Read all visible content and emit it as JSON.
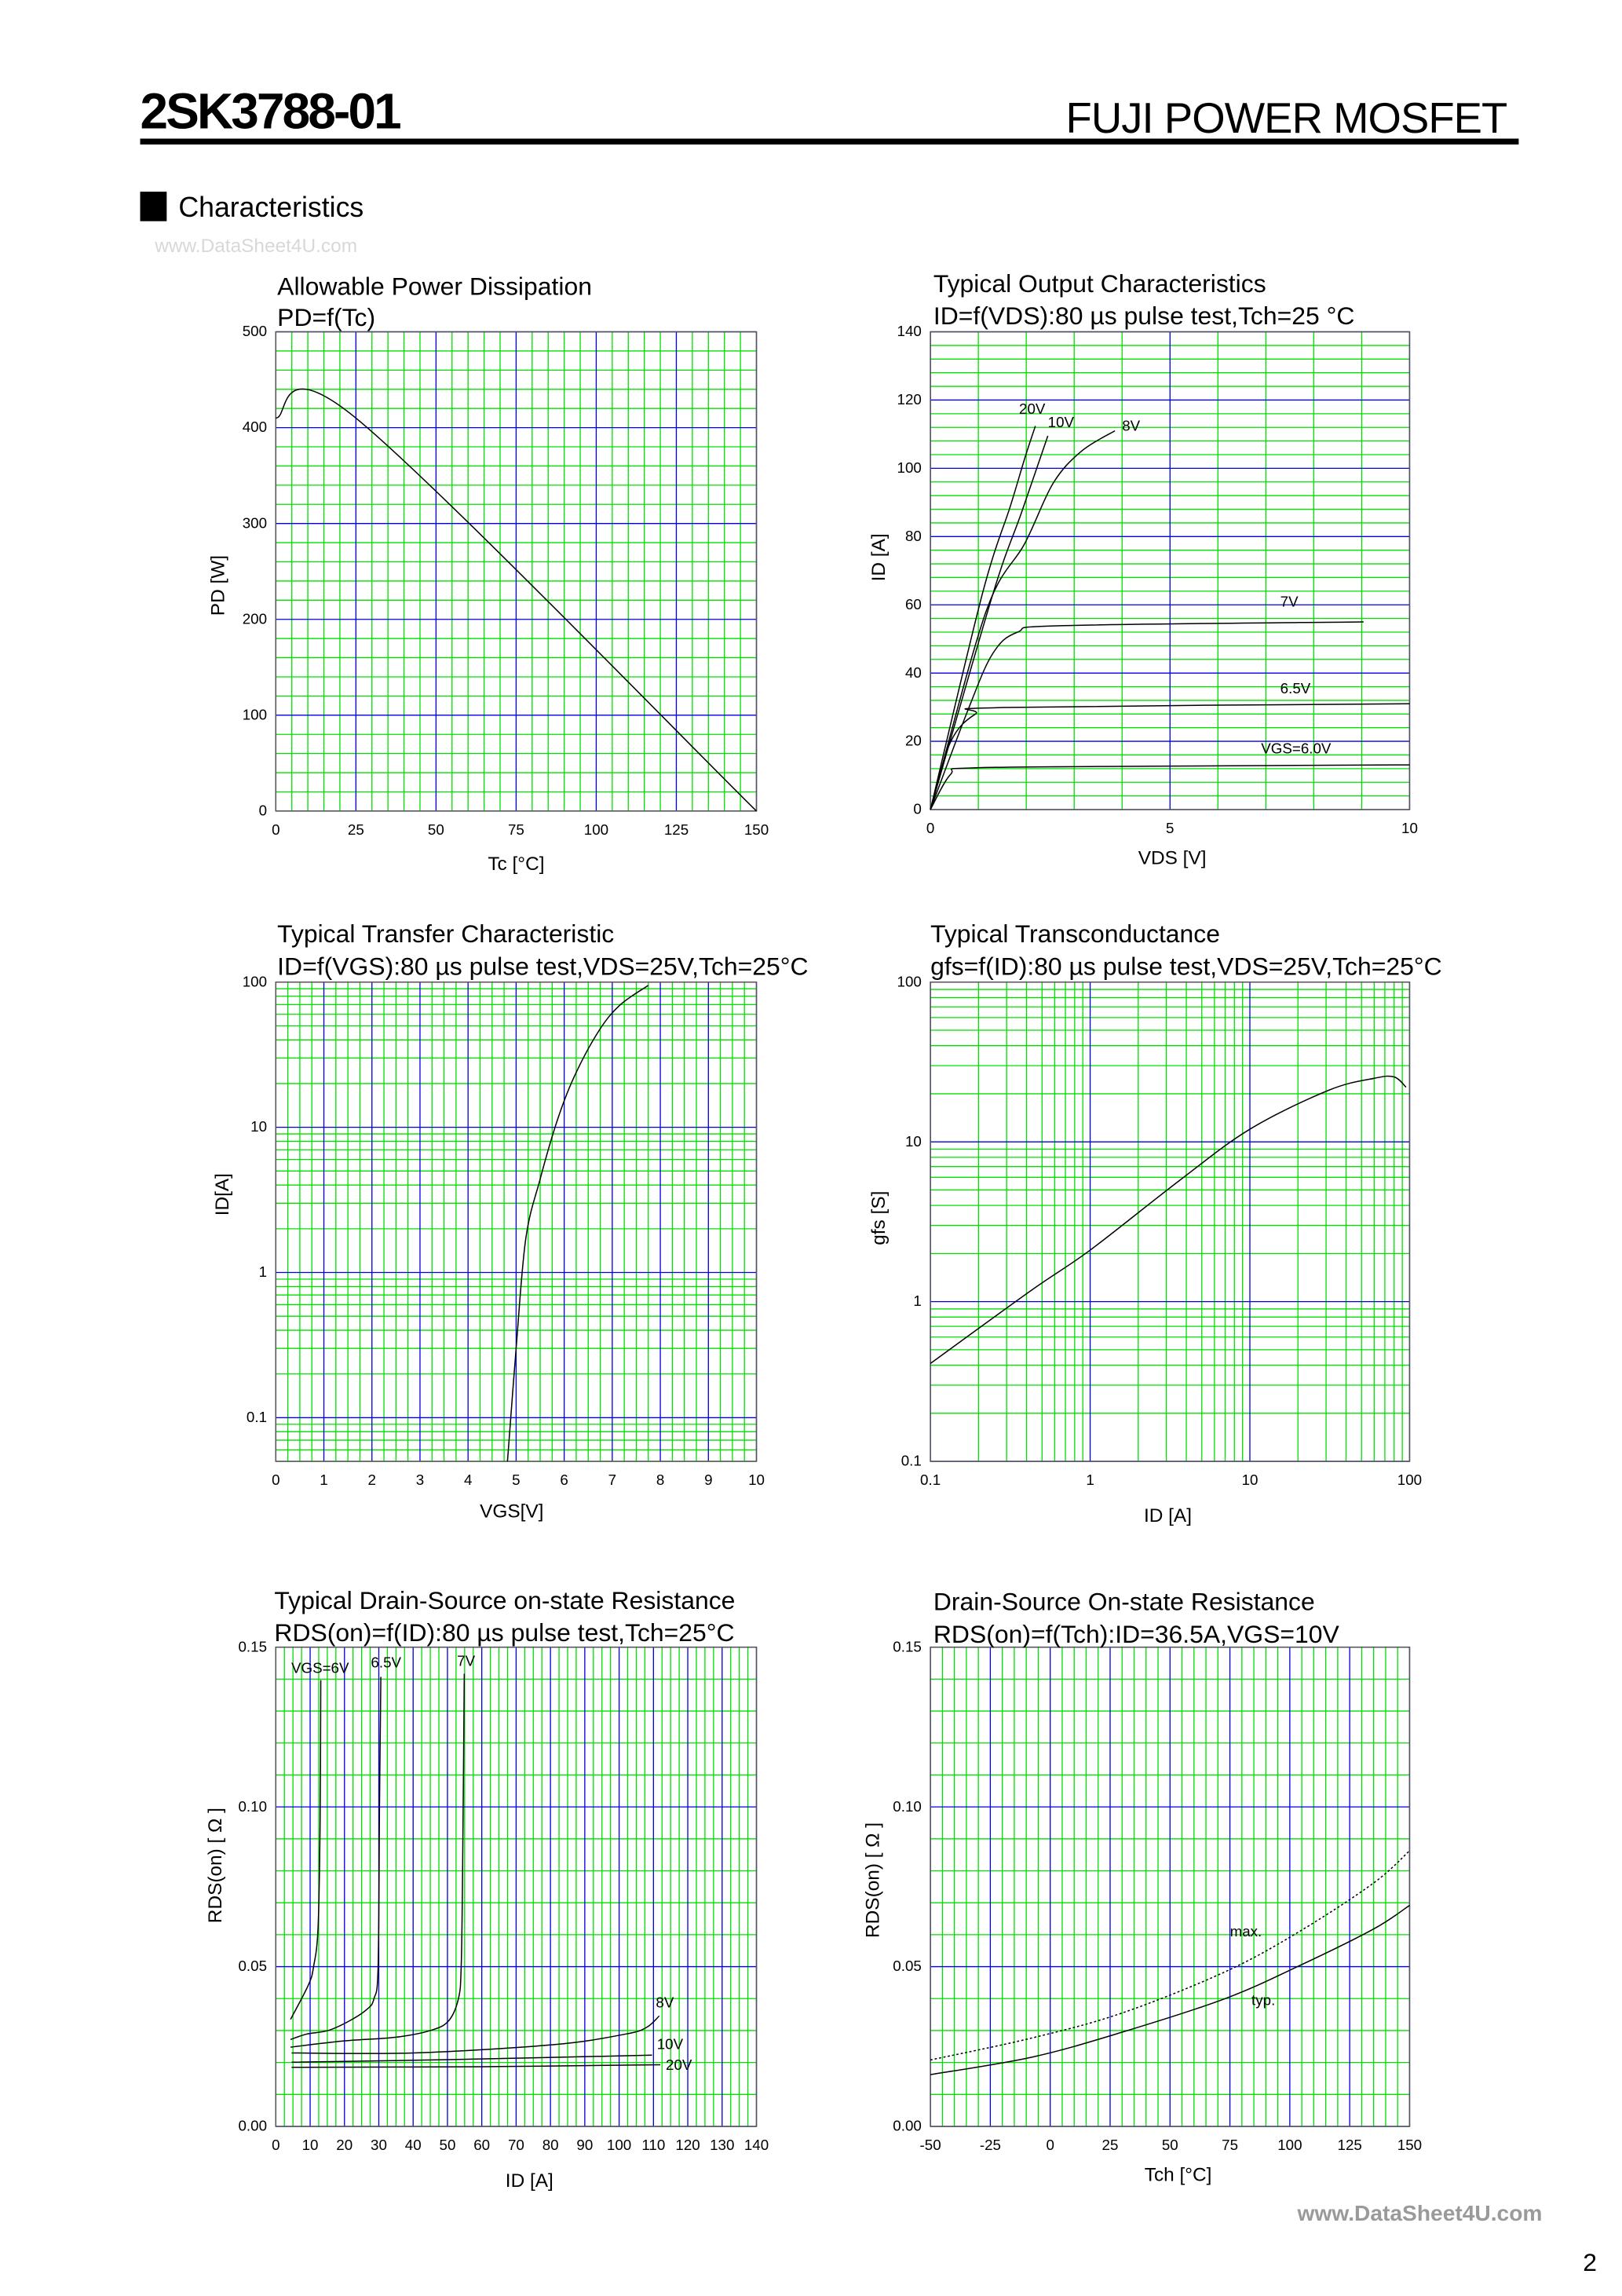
{
  "header": {
    "part_number": "2SK3788-01",
    "product_line": "FUJI POWER MOSFET",
    "section": "Characteristics",
    "watermark_top": "www.DataSheet4U.com",
    "watermark_bottom": "www.DataSheet4U.com",
    "page_number": "2"
  },
  "colors": {
    "minor_grid": "#00e000",
    "major_grid": "#0000e0",
    "curve": "#000000"
  },
  "chart_data": [
    {
      "type": "line",
      "title": "Allowable Power Dissipation",
      "subtitle": "PD=f(Tc)",
      "xlabel": "Tc [°C]",
      "ylabel": "PD [W]",
      "xlim": [
        0,
        150
      ],
      "ylim": [
        0,
        500
      ],
      "grid": true,
      "xticks": [
        "0",
        "25",
        "50",
        "75",
        "100",
        "125",
        "150"
      ],
      "yticks": [
        "0",
        "100",
        "200",
        "300",
        "400",
        "500"
      ],
      "series": [
        {
          "x": [
            0,
            25,
            150
          ],
          "y": [
            410,
            410,
            0
          ]
        }
      ],
      "annotations": []
    },
    {
      "type": "line",
      "title": "Typical Output Characteristics",
      "subtitle": "ID=f(VDS):80 µs pulse test,Tch=25 °C",
      "xlabel": "VDS [V]",
      "ylabel": "ID [A]",
      "xlim": [
        0,
        10
      ],
      "ylim": [
        0,
        140
      ],
      "grid": true,
      "xticks": [
        "0",
        "5",
        "10"
      ],
      "yticks": [
        "0",
        "20",
        "40",
        "60",
        "80",
        "100",
        "120",
        "140"
      ],
      "series": [
        {
          "name": "20V",
          "x": [
            0,
            1.08,
            1.67,
            1.97,
            2.19
          ],
          "y": [
            0,
            63,
            89,
            103,
            112.4
          ]
        },
        {
          "name": "10V",
          "x": [
            0,
            1.3,
            1.9,
            2.45
          ],
          "y": [
            0,
            63,
            87,
            109.5
          ]
        },
        {
          "name": "8V",
          "x": [
            0,
            1.16,
            1.97,
            2.56,
            3.15,
            3.85
          ],
          "y": [
            0,
            58,
            78,
            95.6,
            105,
            111
          ]
        },
        {
          "name": "7V",
          "x": [
            0,
            0.79,
            1.3,
            1.82,
            2.78,
            9.04
          ],
          "y": [
            0,
            29.4,
            45.7,
            52,
            53.9,
            55
          ]
        },
        {
          "name": "6.5V",
          "x": [
            0,
            0.42,
            0.94,
            1.53,
            10
          ],
          "y": [
            0,
            19.8,
            28,
            29.9,
            31
          ]
        },
        {
          "name": "VGS=6.0V",
          "x": [
            0,
            0.42,
            0.86,
            4.6,
            10
          ],
          "y": [
            0,
            10.3,
            12.2,
            12.7,
            13.1
          ]
        }
      ],
      "annotations": [
        {
          "text": "20V",
          "at": [
            1.85,
            116
          ]
        },
        {
          "text": "10V",
          "at": [
            2.45,
            112
          ]
        },
        {
          "text": "8V",
          "at": [
            4.0,
            111
          ]
        },
        {
          "text": "7V",
          "at": [
            7.3,
            59.5
          ]
        },
        {
          "text": "6.5V",
          "at": [
            7.3,
            34
          ]
        },
        {
          "text": "VGS=6.0V",
          "at": [
            6.9,
            16.5
          ]
        }
      ]
    },
    {
      "type": "line",
      "title": "Typical Transfer Characteristic",
      "subtitle": "ID=f(VGS):80 µs pulse test,VDS=25V,Tch=25°C",
      "xlabel": "VGS[V]",
      "ylabel": "ID[A]",
      "xlim": [
        0,
        10
      ],
      "ylim": [
        0.05,
        100
      ],
      "yscale": "log",
      "grid": true,
      "xticks": [
        "0",
        "1",
        "2",
        "3",
        "4",
        "5",
        "6",
        "7",
        "8",
        "9",
        "10"
      ],
      "yticks": [
        "0.1",
        "1",
        "10",
        "100"
      ],
      "series": [
        {
          "x": [
            4.82,
            5.0,
            5.2,
            5.5,
            5.85,
            6.2,
            6.7,
            7.15,
            7.75
          ],
          "y": [
            0.05,
            0.3,
            1.7,
            4.4,
            11,
            22,
            45,
            69,
            95
          ]
        }
      ],
      "annotations": []
    },
    {
      "type": "line",
      "title": "Typical Transconductance",
      "subtitle": "gfs=f(ID):80 µs pulse test,VDS=25V,Tch=25°C",
      "xlabel": "ID [A]",
      "ylabel": "gfs [S]",
      "xlim": [
        0.1,
        100
      ],
      "ylim": [
        0.1,
        100
      ],
      "xscale": "log",
      "yscale": "log",
      "grid": true,
      "xticks": [
        "0.1",
        "1",
        "10",
        "100"
      ],
      "yticks": [
        "0.1",
        "1",
        "10",
        "100"
      ],
      "series": [
        {
          "x": [
            0.1,
            0.43,
            1,
            3.6,
            10,
            31,
            60,
            80,
            95
          ],
          "y": [
            0.41,
            1.18,
            2.1,
            5.7,
            12,
            21,
            25,
            25.5,
            22
          ]
        }
      ],
      "annotations": []
    },
    {
      "type": "line",
      "title": "Typical Drain-Source on-state Resistance",
      "subtitle": "RDS(on)=f(ID):80  µs pulse test,Tch=25°C",
      "xlabel": "ID [A]",
      "ylabel": "RDS(on) [ Ω ]",
      "xlim": [
        0,
        140
      ],
      "ylim": [
        0,
        0.15
      ],
      "grid": true,
      "xticks": [
        "0",
        "10",
        "20",
        "30",
        "40",
        "50",
        "60",
        "70",
        "80",
        "90",
        "100",
        "110",
        "120",
        "130",
        "140"
      ],
      "yticks": [
        "0.00",
        "0.05",
        "0.10",
        "0.15"
      ],
      "series": [
        {
          "name": "VGS=6V",
          "x": [
            4.3,
            9.5,
            11,
            12.3,
            12.9,
            13.1
          ],
          "y": [
            0.0335,
            0.0443,
            0.05,
            0.062,
            0.0945,
            0.1397
          ]
        },
        {
          "name": "6.5V",
          "x": [
            4.3,
            9,
            15.2,
            21.4,
            26.5,
            28.6,
            29.8,
            30.2,
            30.6
          ],
          "y": [
            0.0272,
            0.0289,
            0.03,
            0.033,
            0.0366,
            0.04,
            0.05,
            0.0997,
            0.1407
          ]
        },
        {
          "name": "7V",
          "x": [
            4.3,
            19.3,
            34.8,
            45,
            50.3,
            53.2,
            54,
            54.4,
            54.9
          ],
          "y": [
            0.0248,
            0.0267,
            0.0279,
            0.03,
            0.033,
            0.04,
            0.05,
            0.079,
            0.1417
          ]
        },
        {
          "name": "8V",
          "x": [
            4.6,
            40,
            81,
            101.9,
            108,
            111.7
          ],
          "y": [
            0.023,
            0.023,
            0.0256,
            0.0289,
            0.031,
            0.0346
          ]
        },
        {
          "name": "10V",
          "x": [
            4.6,
            50,
            109.6
          ],
          "y": [
            0.0201,
            0.0209,
            0.0223
          ]
        },
        {
          "name": "20V",
          "x": [
            4.6,
            60.6,
            112
          ],
          "y": [
            0.0185,
            0.0187,
            0.0193
          ]
        }
      ],
      "annotations": [
        {
          "text": "VGS=6V",
          "at": [
            4.5,
            0.1419
          ]
        },
        {
          "text": "6.5V",
          "at": [
            27.7,
            0.1436
          ]
        },
        {
          "text": "7V",
          "at": [
            52.8,
            0.1441
          ]
        },
        {
          "text": "8V",
          "at": [
            110.7,
            0.0372
          ]
        },
        {
          "text": "10V",
          "at": [
            111,
            0.0242
          ]
        },
        {
          "text": "20V",
          "at": [
            113.6,
            0.0177
          ]
        }
      ]
    },
    {
      "type": "line",
      "title": "Drain-Source On-state Resistance",
      "subtitle": "RDS(on)=f(Tch):ID=36.5A,VGS=10V",
      "xlabel": "Tch [°C]",
      "ylabel": "RDS(on) [ Ω ]",
      "xlim": [
        -50,
        150
      ],
      "ylim": [
        0,
        0.15
      ],
      "grid": true,
      "xticks": [
        "-50",
        "-25",
        "0",
        "25",
        "50",
        "75",
        "100",
        "125",
        "150"
      ],
      "yticks": [
        "0.00",
        "0.05",
        "0.10",
        "0.15"
      ],
      "series": [
        {
          "name": "max.",
          "style": "dotted",
          "x": [
            -50,
            -7.5,
            30,
            73,
            104,
            135,
            150
          ],
          "y": [
            0.0208,
            0.0277,
            0.0355,
            0.0484,
            0.061,
            0.0762,
            0.0863
          ]
        },
        {
          "name": "typ.",
          "x": [
            -50,
            -7.5,
            30,
            73,
            104,
            135,
            150
          ],
          "y": [
            0.0162,
            0.0217,
            0.0295,
            0.04,
            0.0503,
            0.0618,
            0.0692
          ]
        }
      ],
      "annotations": [
        {
          "text": "max.",
          "at": [
            75,
            0.0595
          ]
        },
        {
          "text": "typ.",
          "at": [
            84,
            0.038
          ]
        }
      ]
    }
  ]
}
